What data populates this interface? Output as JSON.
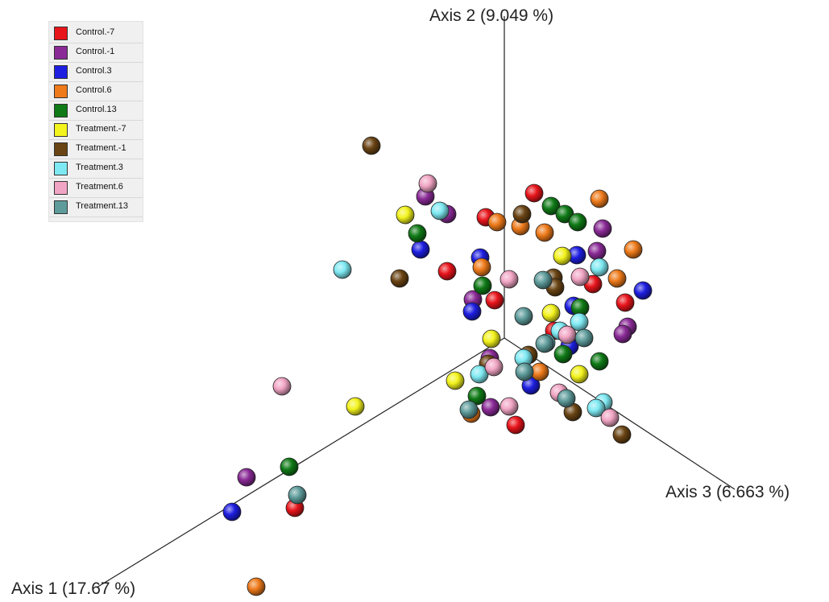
{
  "chart_data": {
    "type": "scatter",
    "subtype": "3d-pcoa",
    "axes": [
      {
        "name": "axis-1",
        "label": "Axis 1 (17.67 %)"
      },
      {
        "name": "axis-2",
        "label": "Axis 2 (9.049 %)"
      },
      {
        "name": "axis-3",
        "label": "Axis 3 (6.663 %)"
      }
    ],
    "legend": {
      "placement": "top-left",
      "entries": [
        {
          "label": "Control.-7",
          "color": "#e8141b"
        },
        {
          "label": "Control.-1",
          "color": "#8a2a96"
        },
        {
          "label": "Control.3",
          "color": "#1d1ee0"
        },
        {
          "label": "Control.6",
          "color": "#ee7a1a"
        },
        {
          "label": "Control.13",
          "color": "#0f7a16"
        },
        {
          "label": "Treatment.-7",
          "color": "#f3f31d"
        },
        {
          "label": "Treatment.-1",
          "color": "#6a4414"
        },
        {
          "label": "Treatment.3",
          "color": "#7ee9f2"
        },
        {
          "label": "Treatment.6",
          "color": "#f1a5c4"
        },
        {
          "label": "Treatment.13",
          "color": "#5e9c9b"
        }
      ]
    },
    "series": [
      {
        "name": "Control.-7",
        "points": [
          [
            663,
            240
          ],
          [
            603,
            270
          ],
          [
            555,
            337
          ],
          [
            614,
            373
          ],
          [
            736,
            353
          ],
          [
            776,
            376
          ],
          [
            688,
            411
          ],
          [
            640,
            528
          ],
          [
            366,
            631
          ]
        ]
      },
      {
        "name": "Control.-1",
        "points": [
          [
            528,
            244
          ],
          [
            555,
            266
          ],
          [
            748,
            284
          ],
          [
            741,
            312
          ],
          [
            587,
            372
          ],
          [
            779,
            406
          ],
          [
            773,
            415
          ],
          [
            608,
            445
          ],
          [
            609,
            506
          ],
          [
            306,
            593
          ]
        ]
      },
      {
        "name": "Control.3",
        "points": [
          [
            522,
            310
          ],
          [
            596,
            320
          ],
          [
            716,
            317
          ],
          [
            798,
            361
          ],
          [
            586,
            387
          ],
          [
            712,
            380
          ],
          [
            707,
            430
          ],
          [
            659,
            479
          ],
          [
            288,
            636
          ]
        ]
      },
      {
        "name": "Control.6",
        "points": [
          [
            744,
            247
          ],
          [
            617,
            276
          ],
          [
            646,
            281
          ],
          [
            676,
            289
          ],
          [
            786,
            310
          ],
          [
            598,
            332
          ],
          [
            766,
            346
          ],
          [
            670,
            462
          ],
          [
            585,
            514
          ],
          [
            318,
            729
          ]
        ]
      },
      {
        "name": "Control.13",
        "points": [
          [
            684,
            256
          ],
          [
            701,
            266
          ],
          [
            717,
            276
          ],
          [
            518,
            290
          ],
          [
            599,
            355
          ],
          [
            720,
            382
          ],
          [
            699,
            440
          ],
          [
            744,
            449
          ],
          [
            592,
            492
          ],
          [
            359,
            580
          ]
        ]
      },
      {
        "name": "Treatment.-7",
        "points": [
          [
            503,
            267
          ],
          [
            698,
            318
          ],
          [
            684,
            389
          ],
          [
            610,
            421
          ],
          [
            565,
            473
          ],
          [
            719,
            465
          ],
          [
            441,
            505
          ]
        ]
      },
      {
        "name": "Treatment.-1",
        "points": [
          [
            461,
            181
          ],
          [
            648,
            266
          ],
          [
            496,
            346
          ],
          [
            687,
            345
          ],
          [
            689,
            357
          ],
          [
            606,
            452
          ],
          [
            656,
            441
          ],
          [
            711,
            512
          ],
          [
            772,
            540
          ]
        ]
      },
      {
        "name": "Treatment.3",
        "points": [
          [
            546,
            262
          ],
          [
            425,
            335
          ],
          [
            744,
            332
          ],
          [
            719,
            400
          ],
          [
            695,
            411
          ],
          [
            678,
            426
          ],
          [
            650,
            445
          ],
          [
            595,
            465
          ],
          [
            749,
            500
          ],
          [
            740,
            507
          ]
        ]
      },
      {
        "name": "Treatment.6",
        "points": [
          [
            531,
            228
          ],
          [
            632,
            347
          ],
          [
            720,
            344
          ],
          [
            704,
            416
          ],
          [
            613,
            456
          ],
          [
            694,
            488
          ],
          [
            632,
            505
          ],
          [
            757,
            519
          ],
          [
            350,
            480
          ]
        ]
      },
      {
        "name": "Treatment.13",
        "points": [
          [
            650,
            393
          ],
          [
            674,
            348
          ],
          [
            676,
            427
          ],
          [
            725,
            420
          ],
          [
            651,
            462
          ],
          [
            703,
            495
          ],
          [
            582,
            509
          ],
          [
            369,
            615
          ]
        ]
      }
    ]
  }
}
